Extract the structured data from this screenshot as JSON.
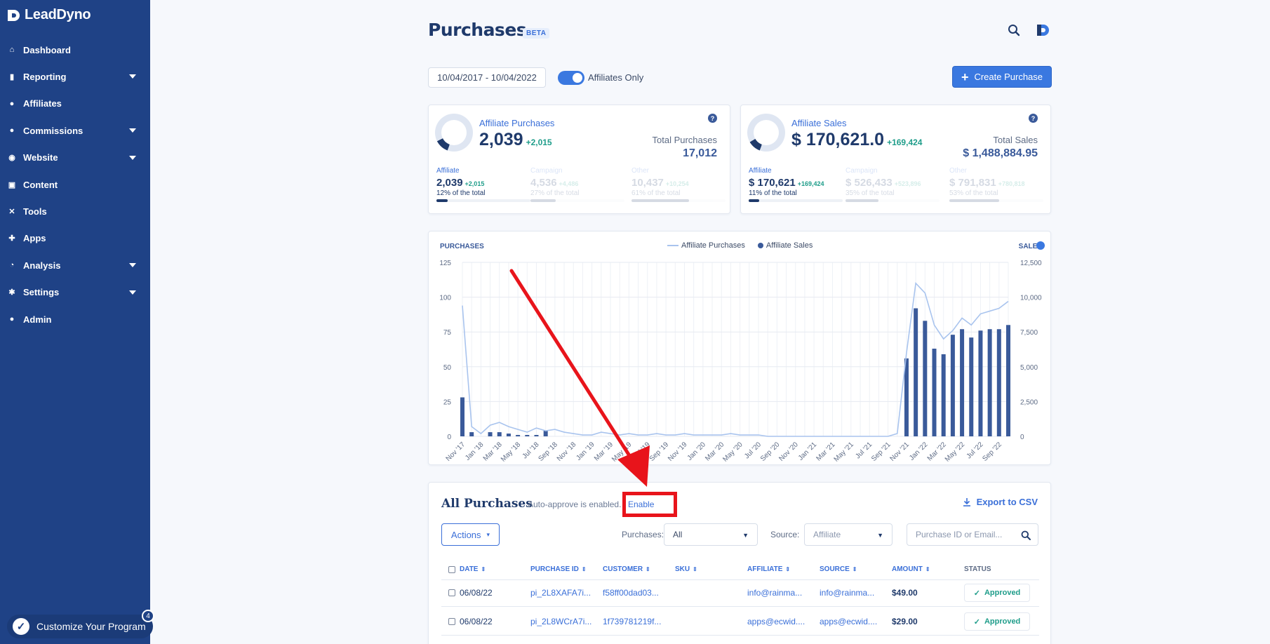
{
  "app": {
    "logo_text": "LeadDyno"
  },
  "sidebar": {
    "items": [
      {
        "label": "Dashboard",
        "icon": "home-icon",
        "glyph": "⌂",
        "caret": false
      },
      {
        "label": "Reporting",
        "icon": "bar-chart-icon",
        "glyph": "▮",
        "caret": true
      },
      {
        "label": "Affiliates",
        "icon": "users-icon",
        "glyph": "●",
        "caret": false
      },
      {
        "label": "Commissions",
        "icon": "chat-dollar-icon",
        "glyph": "●",
        "caret": true
      },
      {
        "label": "Website",
        "icon": "globe-icon",
        "glyph": "◉",
        "caret": true
      },
      {
        "label": "Content",
        "icon": "image-icon",
        "glyph": "▣",
        "caret": false
      },
      {
        "label": "Tools",
        "icon": "tools-icon",
        "glyph": "✕",
        "caret": false
      },
      {
        "label": "Apps",
        "icon": "puzzle-icon",
        "glyph": "✚",
        "caret": false
      },
      {
        "label": "Analysis",
        "icon": "pie-chart-icon",
        "glyph": "◔",
        "caret": true
      },
      {
        "label": "Settings",
        "icon": "gear-icon",
        "glyph": "✱",
        "caret": true
      },
      {
        "label": "Admin",
        "icon": "user-cog-icon",
        "glyph": "●",
        "caret": false
      }
    ],
    "customize_label": "Customize Your Program",
    "customize_badge": "4"
  },
  "header": {
    "title": "Purchases",
    "badge": "BETA"
  },
  "filters": {
    "date_range": "10/04/2017 - 10/04/2022",
    "affiliates_only_label": "Affiliates Only",
    "affiliates_only": true,
    "create_label": "Create Purchase"
  },
  "stats": {
    "purchases": {
      "label": "Affiliate Purchases",
      "value": "2,039",
      "delta": "+2,015",
      "total_label": "Total Purchases",
      "total_value": "17,012",
      "donut_fraction": 0.12,
      "subs": [
        {
          "label": "Affiliate",
          "value": "2,039",
          "delta": "+2,015",
          "pct": "12% of the total",
          "fraction": 0.12
        },
        {
          "label": "Campaign",
          "value": "4,536",
          "delta": "+4,486",
          "pct": "27% of the total",
          "fraction": 0.27
        },
        {
          "label": "Other",
          "value": "10,437",
          "delta": "+10,254",
          "pct": "61% of the total",
          "fraction": 0.61
        }
      ]
    },
    "sales": {
      "label": "Affiliate Sales",
      "value": "$ 170,621.0",
      "delta": "+169,424",
      "total_label": "Total Sales",
      "total_value": "$ 1,488,884.95",
      "donut_fraction": 0.11,
      "subs": [
        {
          "label": "Affiliate",
          "value": "$ 170,621",
          "delta": "+169,424",
          "pct": "11% of the total",
          "fraction": 0.11
        },
        {
          "label": "Campaign",
          "value": "$ 526,433",
          "delta": "+523,896",
          "pct": "35% of the total",
          "fraction": 0.35
        },
        {
          "label": "Other",
          "value": "$ 791,831",
          "delta": "+780,818",
          "pct": "53% of the total",
          "fraction": 0.53
        }
      ]
    }
  },
  "chart_data": {
    "type": "bar",
    "left_label": "PURCHASES",
    "right_label": "SALES",
    "legend": [
      "Affiliate Purchases",
      "Affiliate Sales"
    ],
    "left_ylim": [
      0,
      125
    ],
    "right_ylim": [
      0,
      12500
    ],
    "left_ticks": [
      "0",
      "25",
      "50",
      "75",
      "100",
      "125"
    ],
    "right_ticks": [
      "0",
      "2,500",
      "5,000",
      "7,500",
      "10,000",
      "12,500"
    ],
    "x_tick_labels": [
      "Nov '17",
      "Jan '18",
      "Mar '18",
      "May '18",
      "Jul '18",
      "Sep '18",
      "Nov '18",
      "Jan '19",
      "Mar '19",
      "May '19",
      "Jul '19",
      "Sep '19",
      "Nov '19",
      "Jan '20",
      "Mar '20",
      "May '20",
      "Jul '20",
      "Sep '20",
      "Nov '20",
      "Jan '21",
      "Mar '21",
      "May '21",
      "Jul '21",
      "Sep '21",
      "Nov '21",
      "Jan '22",
      "Mar '22",
      "May '22",
      "Jul '22",
      "Sep '22"
    ],
    "months": 60,
    "purchases_line": [
      94,
      7,
      2,
      8,
      10,
      7,
      5,
      3,
      6,
      4,
      5,
      3,
      2,
      1,
      1,
      3,
      2,
      1,
      2,
      1,
      1,
      2,
      1,
      1,
      2,
      1,
      1,
      1,
      1,
      2,
      1,
      1,
      1,
      0,
      0,
      0,
      0,
      0,
      0,
      0,
      0,
      0,
      0,
      0,
      0,
      0,
      0,
      2,
      60,
      110,
      103,
      80,
      70,
      76,
      85,
      80,
      88,
      90,
      92,
      97
    ],
    "sales_bars": [
      2800,
      300,
      0,
      300,
      300,
      200,
      100,
      100,
      100,
      400,
      0,
      0,
      0,
      0,
      0,
      0,
      0,
      0,
      0,
      0,
      0,
      0,
      0,
      0,
      0,
      0,
      0,
      0,
      0,
      0,
      0,
      0,
      0,
      0,
      0,
      0,
      0,
      0,
      0,
      0,
      0,
      0,
      0,
      0,
      0,
      0,
      0,
      0,
      5600,
      9200,
      8300,
      6300,
      5900,
      7300,
      7700,
      7100,
      7600,
      7700,
      7700,
      8000
    ]
  },
  "purchases_table": {
    "title": "All Purchases",
    "auto_approve_text": "Auto-approve is enabled.",
    "enable_label": "Enable",
    "export_label": "Export to CSV",
    "actions_label": "Actions",
    "purchases_filter_label": "Purchases:",
    "purchases_filter_value": "All",
    "source_filter_label": "Source:",
    "source_filter_value": "Affiliate",
    "search_placeholder": "Purchase ID or Email...",
    "columns": [
      "DATE",
      "PURCHASE ID",
      "CUSTOMER",
      "SKU",
      "AFFILIATE",
      "SOURCE",
      "AMOUNT",
      "STATUS"
    ],
    "rows": [
      {
        "date": "06/08/22",
        "purchase_id": "pi_2L8XAFA7i...",
        "customer": "f58ff00dad03...",
        "sku": "",
        "affiliate": "info@rainma...",
        "source": "info@rainma...",
        "amount": "$49.00",
        "status": "Approved"
      },
      {
        "date": "06/08/22",
        "purchase_id": "pi_2L8WCrA7i...",
        "customer": "1f739781219f...",
        "sku": "",
        "affiliate": "apps@ecwid....",
        "source": "apps@ecwid....",
        "amount": "$29.00",
        "status": "Approved"
      }
    ]
  },
  "colors": {
    "sidebar": "#1f4286",
    "accent": "#3a78e0",
    "bar": "#3a5a9a",
    "line": "#a9c4ee",
    "approved": "#1f9d8a",
    "annotation": "#e8141b"
  }
}
